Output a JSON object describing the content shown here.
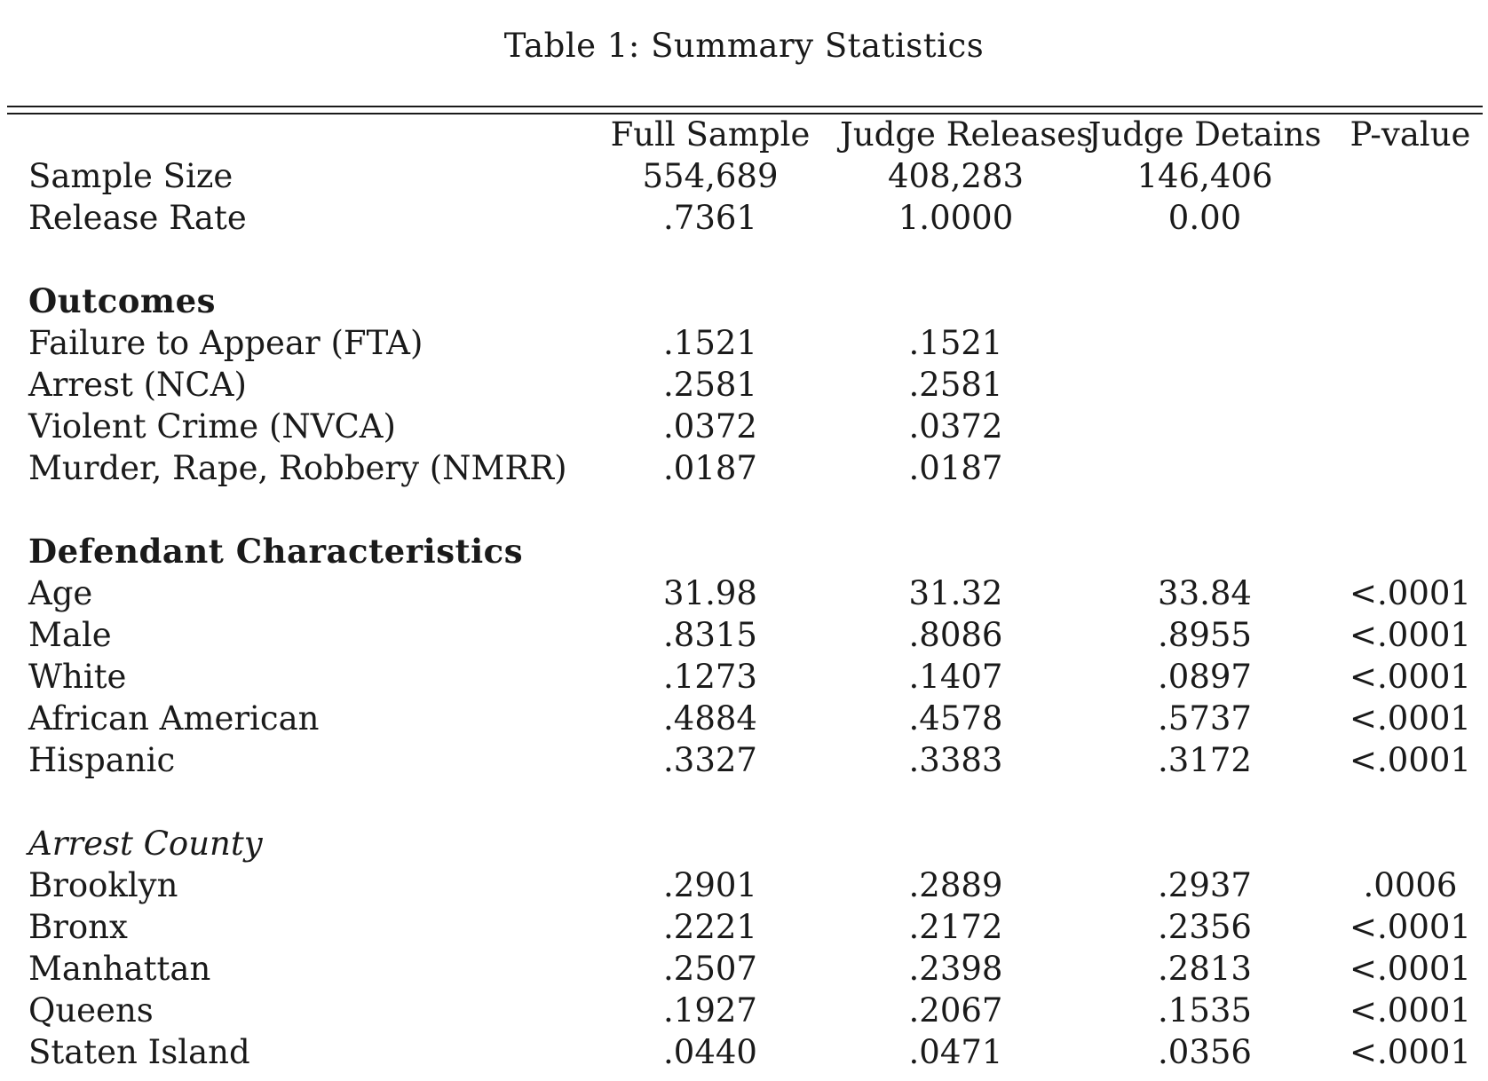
{
  "caption": "Table 1: Summary Statistics",
  "columns": [
    "Full Sample",
    "Judge Releases",
    "Judge Detains",
    "P-value"
  ],
  "top_rows": [
    {
      "label": "Sample Size",
      "values": [
        "554,689",
        "408,283",
        "146,406",
        ""
      ]
    },
    {
      "label": "Release Rate",
      "values": [
        ".7361",
        "1.0000",
        "0.00",
        ""
      ]
    }
  ],
  "outcomes": {
    "title": "Outcomes",
    "rows": [
      {
        "label": "Failure to Appear (FTA)",
        "values": [
          ".1521",
          ".1521",
          "",
          ""
        ]
      },
      {
        "label": "Arrest (NCA)",
        "values": [
          ".2581",
          ".2581",
          "",
          ""
        ]
      },
      {
        "label": "Violent Crime (NVCA)",
        "values": [
          ".0372",
          ".0372",
          "",
          ""
        ]
      },
      {
        "label": "Murder, Rape, Robbery (NMRR)",
        "values": [
          ".0187",
          ".0187",
          "",
          ""
        ]
      }
    ]
  },
  "defendant": {
    "title": "Defendant Characteristics",
    "rows": [
      {
        "label": "Age",
        "values": [
          "31.98",
          "31.32",
          "33.84",
          "<.0001"
        ]
      },
      {
        "label": "Male",
        "values": [
          ".8315",
          ".8086",
          ".8955",
          "<.0001"
        ]
      },
      {
        "label": "White",
        "values": [
          ".1273",
          ".1407",
          ".0897",
          "<.0001"
        ]
      },
      {
        "label": "African American",
        "values": [
          ".4884",
          ".4578",
          ".5737",
          "<.0001"
        ]
      },
      {
        "label": "Hispanic",
        "values": [
          ".3327",
          ".3383",
          ".3172",
          "<.0001"
        ]
      }
    ]
  },
  "county": {
    "title": "Arrest County",
    "rows": [
      {
        "label": "Brooklyn",
        "values": [
          ".2901",
          ".2889",
          ".2937",
          ".0006"
        ]
      },
      {
        "label": "Bronx",
        "values": [
          ".2221",
          ".2172",
          ".2356",
          "<.0001"
        ]
      },
      {
        "label": "Manhattan",
        "values": [
          ".2507",
          ".2398",
          ".2813",
          "<.0001"
        ]
      },
      {
        "label": "Queens",
        "values": [
          ".1927",
          ".2067",
          ".1535",
          "<.0001"
        ]
      },
      {
        "label": "Staten Island",
        "values": [
          ".0440",
          ".0471",
          ".0356",
          "<.0001"
        ]
      }
    ]
  }
}
